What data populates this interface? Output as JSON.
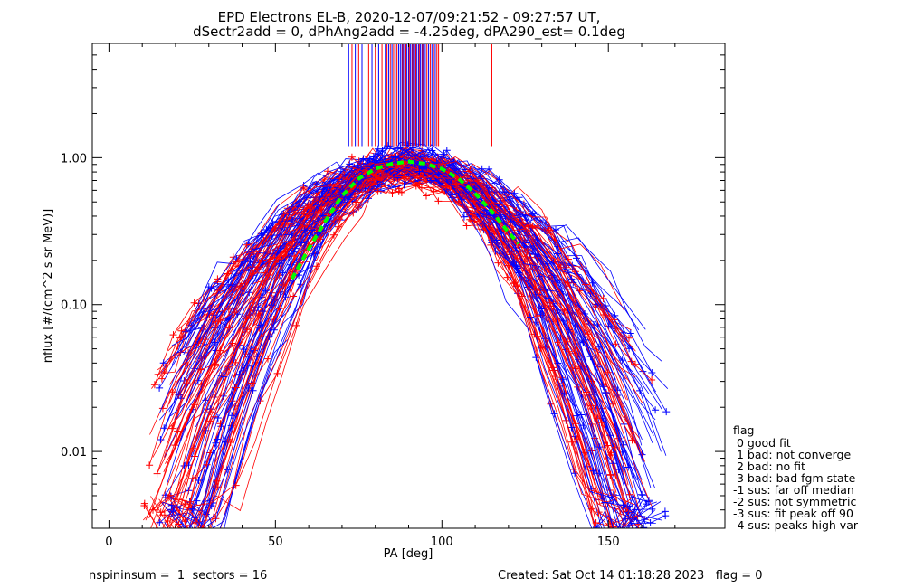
{
  "chart_data": {
    "type": "line",
    "title": "EPD Electrons EL-B, 2020-12-07/09:21:52 - 09:27:57 UT,",
    "subtitle": "dSectr2add = 0, dPhAng2add = -4.25deg, dPA290_est=   0.1deg",
    "xlabel": "PA [deg]",
    "ylabel": "nflux [#/(cm^2 s sr MeV)]",
    "xlim": [
      -5,
      185
    ],
    "ylim": [
      0.003,
      6.0
    ],
    "yscale": "log",
    "x_ticks": [
      0,
      50,
      100,
      150
    ],
    "x_tick_labels": [
      "0",
      "50",
      "100",
      "150"
    ],
    "y_ticks": [
      0.01,
      0.1,
      1.0
    ],
    "y_tick_labels": [
      "0.01",
      "0.10",
      "1.00"
    ],
    "grid": false,
    "series": [
      {
        "color": "#0000ff",
        "marker": "+",
        "description_values": "family of pitch-angle distributions peaked near 90 deg",
        "peak_x": 90,
        "peak_y": 0.9,
        "x_range": [
          15,
          170
        ]
      },
      {
        "color": "#ff0000",
        "marker": "+",
        "peak_x": 90,
        "peak_y": 0.85,
        "x_range": [
          10,
          165
        ]
      },
      {
        "color": "#00ff00",
        "style": "dashed",
        "x": [
          55,
          60,
          65,
          70,
          75,
          80,
          85,
          90,
          95,
          100,
          105,
          110,
          115,
          120,
          123
        ],
        "y": [
          0.15,
          0.24,
          0.37,
          0.55,
          0.72,
          0.84,
          0.91,
          0.94,
          0.91,
          0.84,
          0.72,
          0.57,
          0.43,
          0.31,
          0.26
        ]
      }
    ],
    "peak_markers": {
      "ymin": 1.2,
      "ymax": 6.0,
      "blue_x": [
        72,
        74,
        76,
        79,
        81,
        83,
        84,
        85,
        86,
        87,
        87.5,
        88,
        88.5,
        89,
        89.5,
        90,
        90.5,
        91,
        91.5,
        92,
        92.5,
        93,
        93.5,
        94,
        94.5,
        95,
        96,
        97,
        98
      ],
      "red_x": [
        73,
        75,
        78,
        80,
        82,
        83.5,
        84.5,
        85.5,
        86.5,
        88.2,
        89.2,
        90.2,
        91.2,
        92.2,
        93.2,
        94.2,
        95.5,
        96.5,
        97.5,
        98.5,
        99,
        115
      ]
    },
    "legend": {
      "position": "right",
      "title": "flag",
      "entries": [
        " 0 good fit",
        " 1 bad: not converge",
        " 2 bad: no fit",
        " 3 bad: bad fgm state",
        "-1 sus: far off median",
        "-2 sus: not symmetric",
        "-3 sus: fit peak off 90",
        "-4 sus: peaks high var"
      ]
    },
    "footer": {
      "left": "nspininsum =  1  sectors = 16",
      "right": "Created: Sat Oct 14 01:18:28 2023   flag = 0"
    }
  }
}
